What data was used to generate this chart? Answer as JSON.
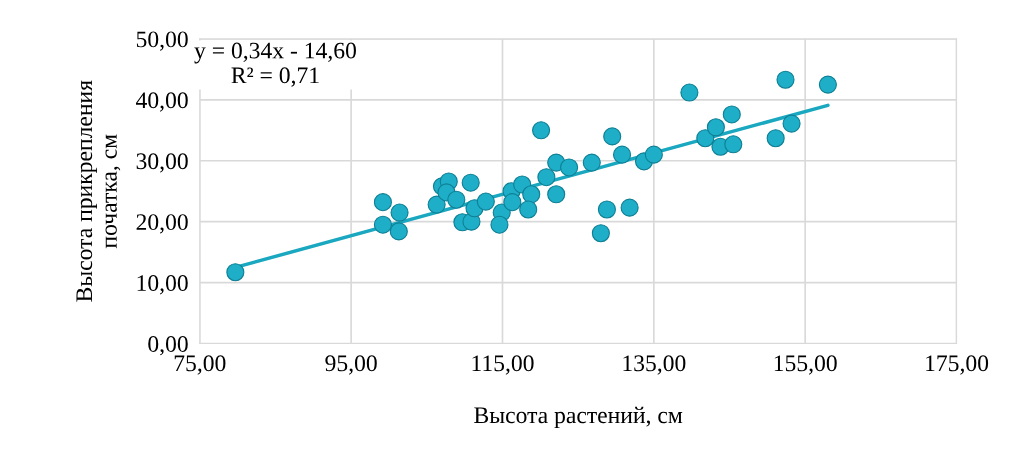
{
  "chart_data": {
    "type": "scatter",
    "xlabel": "Высота растений, см",
    "ylabel": "Высота прикрепления\nпочатка, см",
    "xlim": [
      75,
      175
    ],
    "xticks": [
      {
        "value": 75,
        "label": "75,00"
      },
      {
        "value": 95,
        "label": "95,00"
      },
      {
        "value": 115,
        "label": "115,00"
      },
      {
        "value": 135,
        "label": "135,00"
      },
      {
        "value": 155,
        "label": "155,00"
      },
      {
        "value": 175,
        "label": "175,00"
      }
    ],
    "ylim": [
      0,
      50
    ],
    "yticks": [
      {
        "value": 0,
        "label": "0,00"
      },
      {
        "value": 10,
        "label": "10,00"
      },
      {
        "value": 20,
        "label": "20,00"
      },
      {
        "value": 30,
        "label": "30,00"
      },
      {
        "value": 40,
        "label": "40,00"
      },
      {
        "value": 50,
        "label": "50,00"
      }
    ],
    "grid": true,
    "annotations": [
      "y = 0,34x - 14,60\nR² = 0,71"
    ],
    "series": [
      {
        "marker": "circle",
        "color": "#1eaec8",
        "x": [
          79.7,
          99.2,
          101.4,
          99.2,
          101.3,
          106.3,
          107.0,
          107.9,
          107.6,
          108.9,
          110.8,
          109.7,
          110.9,
          111.3,
          112.8,
          114.9,
          114.6,
          116.2,
          116.3,
          117.6,
          118.8,
          118.4,
          120.8,
          120.1,
          122.1,
          122.1,
          123.8,
          126.8,
          128.8,
          128.0,
          131.8,
          129.5,
          130.8,
          133.7,
          135.0,
          139.7,
          141.8,
          143.2,
          143.8,
          145.3,
          145.5,
          151.1,
          153.2,
          152.4,
          158.0
        ],
        "values": [
          11.7,
          23.2,
          21.5,
          19.5,
          18.4,
          22.8,
          25.8,
          26.6,
          24.8,
          23.6,
          26.4,
          19.9,
          20.0,
          22.2,
          23.3,
          21.5,
          19.5,
          25.0,
          23.2,
          26.1,
          24.5,
          22.0,
          27.3,
          35.0,
          24.5,
          29.7,
          28.9,
          29.7,
          22.0,
          18.1,
          22.3,
          34.0,
          31.0,
          29.9,
          31.0,
          41.2,
          33.7,
          35.5,
          32.3,
          37.6,
          32.7,
          33.7,
          36.1,
          43.3,
          42.5
        ]
      },
      {
        "type": "line",
        "marker": "none",
        "color": "#1aa7c0",
        "x": [
          79.7,
          158.0
        ],
        "values": [
          12.5,
          39.1
        ]
      }
    ]
  }
}
